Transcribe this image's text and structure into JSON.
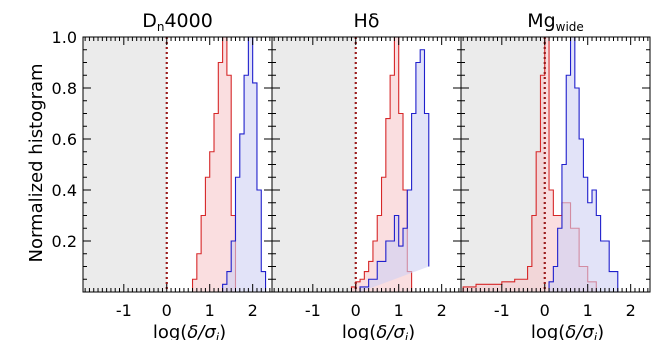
{
  "figure": {
    "ylabel": "Normalized histogram",
    "colors": {
      "red": "#d62728",
      "red_fill": "#f7c8cc",
      "blue": "#1f1fcc",
      "blue_fill": "#cfd0f3",
      "shade": "#ebebeb",
      "dotted": "#9b1b1b"
    }
  },
  "chart_data": [
    {
      "type": "histogram",
      "title": "D_n4000",
      "title_main": "D",
      "title_sub": "n",
      "title_tail": "4000",
      "xlabel": "log(δ/σ_i)",
      "xlim": [
        -1.95,
        2.45
      ],
      "ylim": [
        0,
        1.0
      ],
      "shaded_region": [
        -1.95,
        0
      ],
      "reference_line_x": 0,
      "series": [
        {
          "color": "red",
          "bin_edges": [
            0.6,
            0.7,
            0.8,
            0.9,
            1.0,
            1.1,
            1.2,
            1.3,
            1.4,
            1.5,
            1.6
          ],
          "counts": [
            0.05,
            0.15,
            0.3,
            0.45,
            0.55,
            0.7,
            0.9,
            1.0,
            0.85,
            0.3
          ]
        },
        {
          "color": "blue",
          "bin_edges": [
            1.3,
            1.4,
            1.5,
            1.6,
            1.7,
            1.8,
            1.9,
            2.0,
            2.1,
            2.2,
            2.3
          ],
          "counts": [
            0.03,
            0.08,
            0.2,
            0.45,
            0.62,
            0.85,
            1.0,
            0.82,
            0.4,
            0.08
          ]
        }
      ]
    },
    {
      "type": "histogram",
      "title": "Hδ",
      "title_main": "Hδ",
      "title_sub": "",
      "title_tail": "",
      "xlabel": "log(δ/σ_i)",
      "xlim": [
        -1.95,
        2.45
      ],
      "ylim": [
        0,
        1.0
      ],
      "shaded_region": [
        -1.95,
        0
      ],
      "reference_line_x": 0,
      "series": [
        {
          "color": "red",
          "bin_edges": [
            -0.1,
            0.0,
            0.1,
            0.2,
            0.3,
            0.4,
            0.5,
            0.6,
            0.7,
            0.8,
            0.9,
            1.0,
            1.1,
            1.2,
            1.3
          ],
          "counts": [
            0.02,
            0.04,
            0.05,
            0.08,
            0.12,
            0.2,
            0.3,
            0.45,
            0.68,
            0.85,
            1.0,
            0.7,
            0.4,
            0.08
          ]
        },
        {
          "color": "blue",
          "bin_edges": [
            0.1,
            0.3,
            0.5,
            0.7,
            0.9,
            1.0,
            1.1,
            1.2,
            1.3,
            1.4,
            1.5,
            1.6,
            1.7
          ],
          "counts": [
            0.02,
            0.05,
            0.12,
            0.2,
            0.3,
            0.18,
            0.25,
            0.4,
            0.7,
            0.9,
            0.95,
            0.7,
            0.1
          ]
        }
      ]
    },
    {
      "type": "histogram",
      "title": "Mg_wide",
      "title_main": "Mg",
      "title_sub": "wide",
      "title_tail": "",
      "xlabel": "log(δ/σ_i)",
      "xlim": [
        -1.95,
        2.45
      ],
      "ylim": [
        0,
        1.0
      ],
      "shaded_region": [
        -1.95,
        0
      ],
      "reference_line_x": 0,
      "series": [
        {
          "color": "red",
          "bin_edges": [
            -1.9,
            -1.6,
            -1.3,
            -1.0,
            -0.7,
            -0.4,
            -0.3,
            -0.2,
            -0.1,
            0.0,
            0.1,
            0.2,
            0.4,
            0.6,
            0.8,
            1.0,
            1.2
          ],
          "counts": [
            0.02,
            0.03,
            0.03,
            0.04,
            0.05,
            0.1,
            0.3,
            0.55,
            0.85,
            1.0,
            0.4,
            0.3,
            0.35,
            0.25,
            0.1,
            0.04
          ]
        },
        {
          "color": "blue",
          "bin_edges": [
            0.1,
            0.2,
            0.3,
            0.4,
            0.5,
            0.6,
            0.7,
            0.8,
            0.9,
            1.0,
            1.1,
            1.2,
            1.3,
            1.5,
            1.7
          ],
          "counts": [
            0.04,
            0.1,
            0.25,
            0.5,
            0.85,
            1.0,
            0.8,
            0.6,
            0.45,
            0.35,
            0.4,
            0.3,
            0.2,
            0.08
          ]
        }
      ]
    }
  ]
}
